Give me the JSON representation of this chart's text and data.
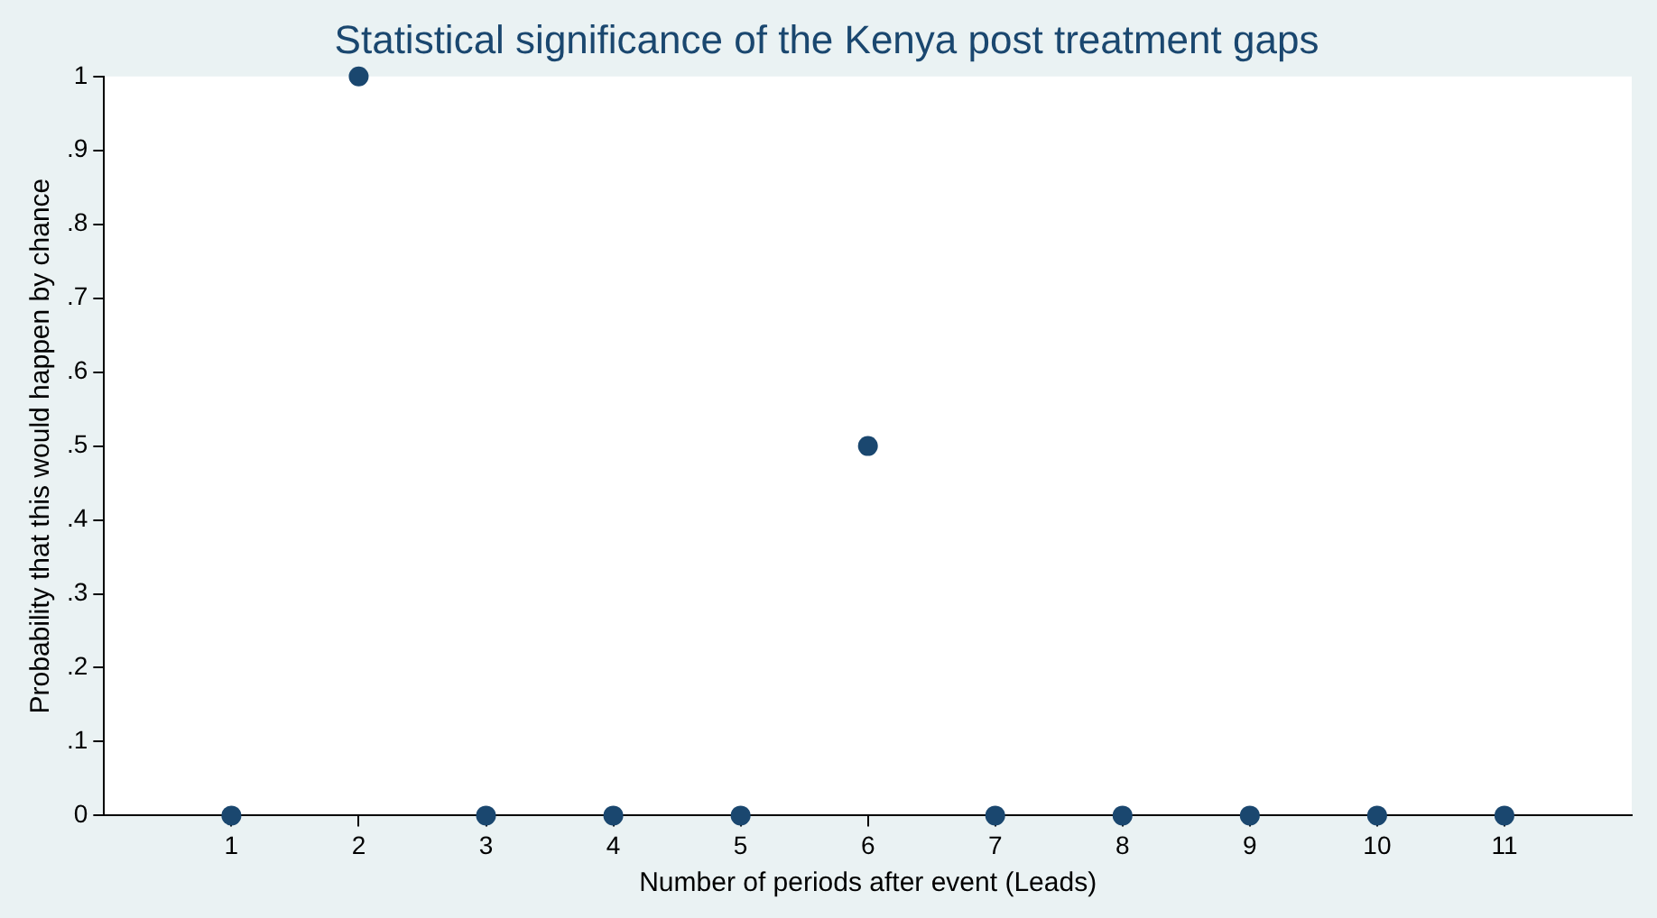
{
  "chart_data": {
    "type": "scatter",
    "title": "Statistical significance of the Kenya post treatment gaps",
    "xlabel": "Number of periods after event (Leads)",
    "ylabel": "Probability that this would happen by chance",
    "x": [
      1,
      2,
      3,
      4,
      5,
      6,
      7,
      8,
      9,
      10,
      11
    ],
    "series": [
      {
        "color": "#1a476f",
        "values": [
          0,
          1,
          0,
          0,
          0,
          0.5,
          0,
          0,
          0,
          0,
          0
        ]
      }
    ],
    "xlim": [
      0,
      12
    ],
    "xticks": [
      1,
      2,
      3,
      4,
      5,
      6,
      7,
      8,
      9,
      10,
      11
    ],
    "ylim": [
      0,
      1
    ],
    "yticks": [
      0,
      {
        "value": 0.1,
        "label": ".1"
      },
      {
        "value": 0.2,
        "label": ".2"
      },
      {
        "value": 0.3,
        "label": ".3"
      },
      {
        "value": 0.4,
        "label": ".4"
      },
      {
        "value": 0.5,
        "label": ".5"
      },
      {
        "value": 0.6,
        "label": ".6"
      },
      {
        "value": 0.7,
        "label": ".7"
      },
      {
        "value": 0.8,
        "label": ".8"
      },
      {
        "value": 0.9,
        "label": ".9"
      },
      1
    ],
    "grid": false,
    "legend": false,
    "marker": "circle"
  }
}
